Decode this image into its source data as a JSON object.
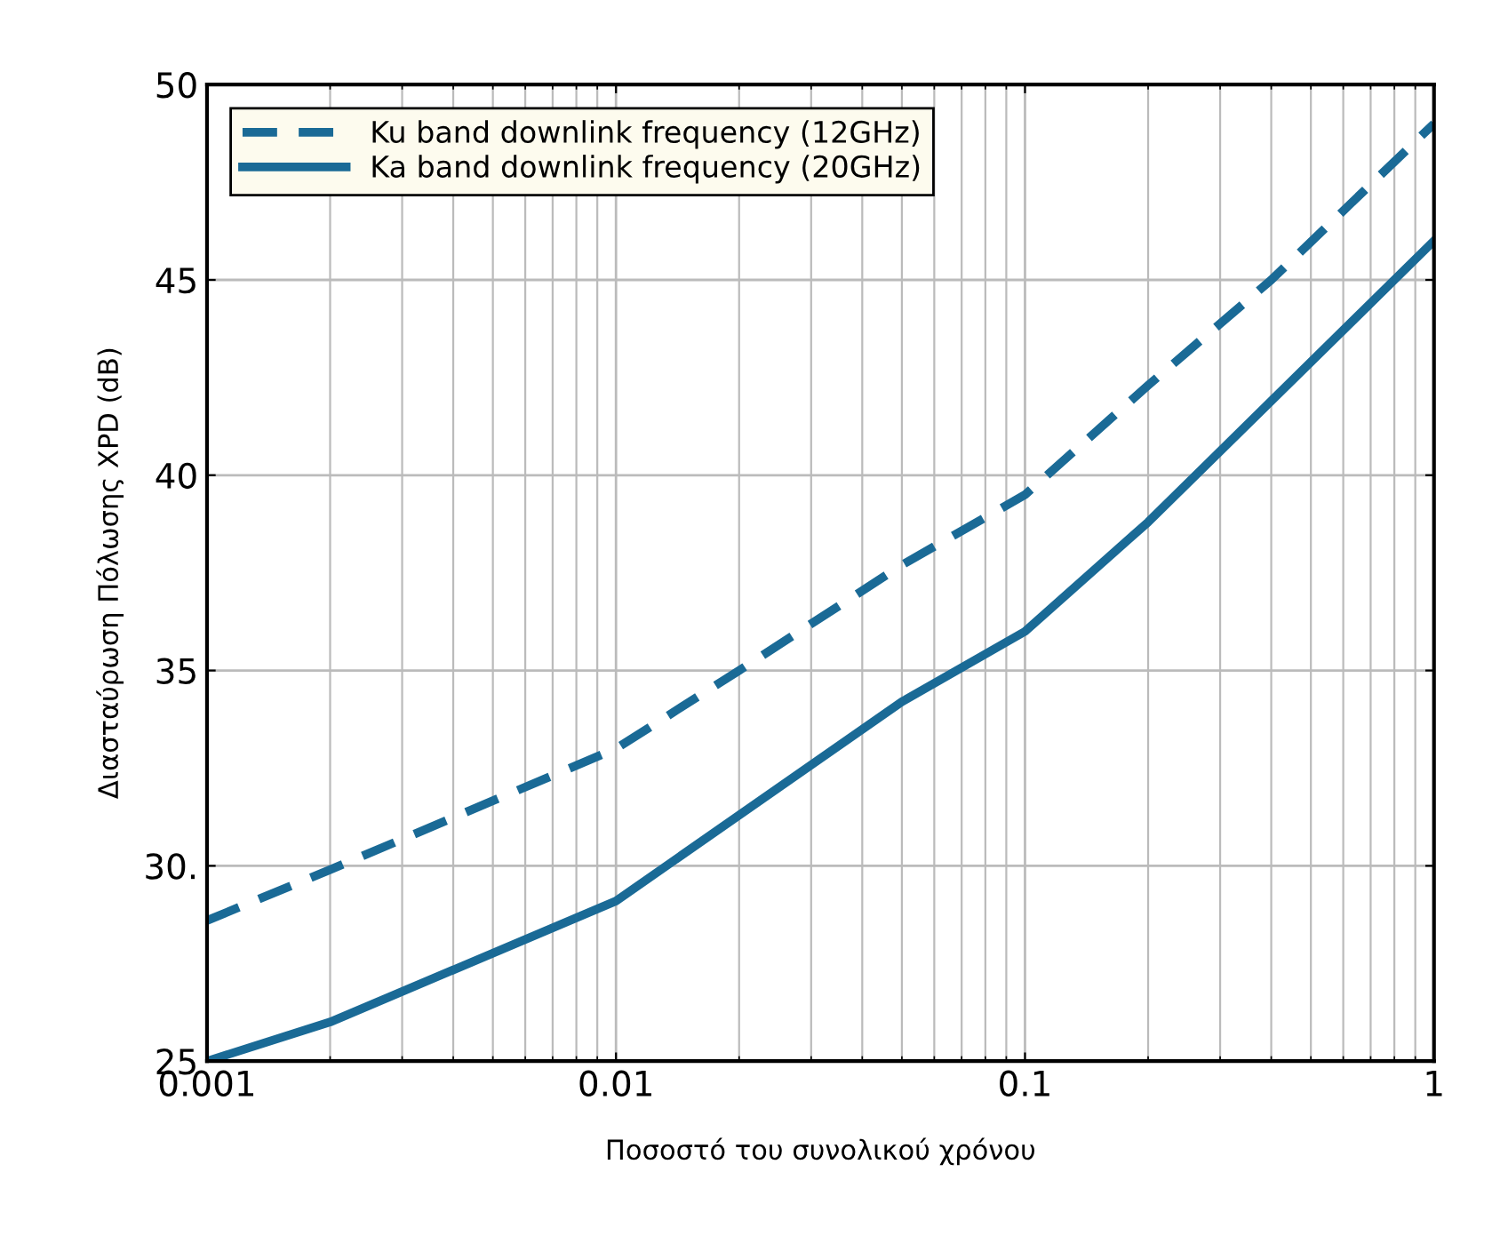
{
  "chart_data": {
    "type": "line",
    "xlabel": "Ποσοστό του συνολικού χρόνου",
    "ylabel": "Διασταύρωση Πόλωσης XPD (dB)",
    "log": "x",
    "xlim": [
      0.001,
      1
    ],
    "xticks": [
      0.001,
      0.01,
      0.1,
      1
    ],
    "ylim": [
      25,
      50
    ],
    "yticks": [
      25,
      {
        "value": 30,
        "label": "30."
      },
      35,
      40,
      45,
      50
    ],
    "grid": true,
    "legend": "top left",
    "series": [
      {
        "name": "Ku band downlink frequency (12GHz)",
        "color": "#1a6a96",
        "line_style": "dashed",
        "x": [
          0.001,
          0.002,
          0.01,
          0.02,
          0.05,
          0.1,
          0.2,
          0.4,
          1
        ],
        "values": [
          28.6,
          29.9,
          33.0,
          35.0,
          37.7,
          39.5,
          42.3,
          45.0,
          49.0
        ]
      },
      {
        "name": "Ka band downlink frequency (20GHz)",
        "color": "#1a6a96",
        "line_style": "solid",
        "x": [
          0.001,
          0.002,
          0.01,
          0.05,
          0.1,
          0.2,
          1
        ],
        "values": [
          25.0,
          26.0,
          29.1,
          34.2,
          36.0,
          38.8,
          46.0
        ]
      }
    ]
  }
}
